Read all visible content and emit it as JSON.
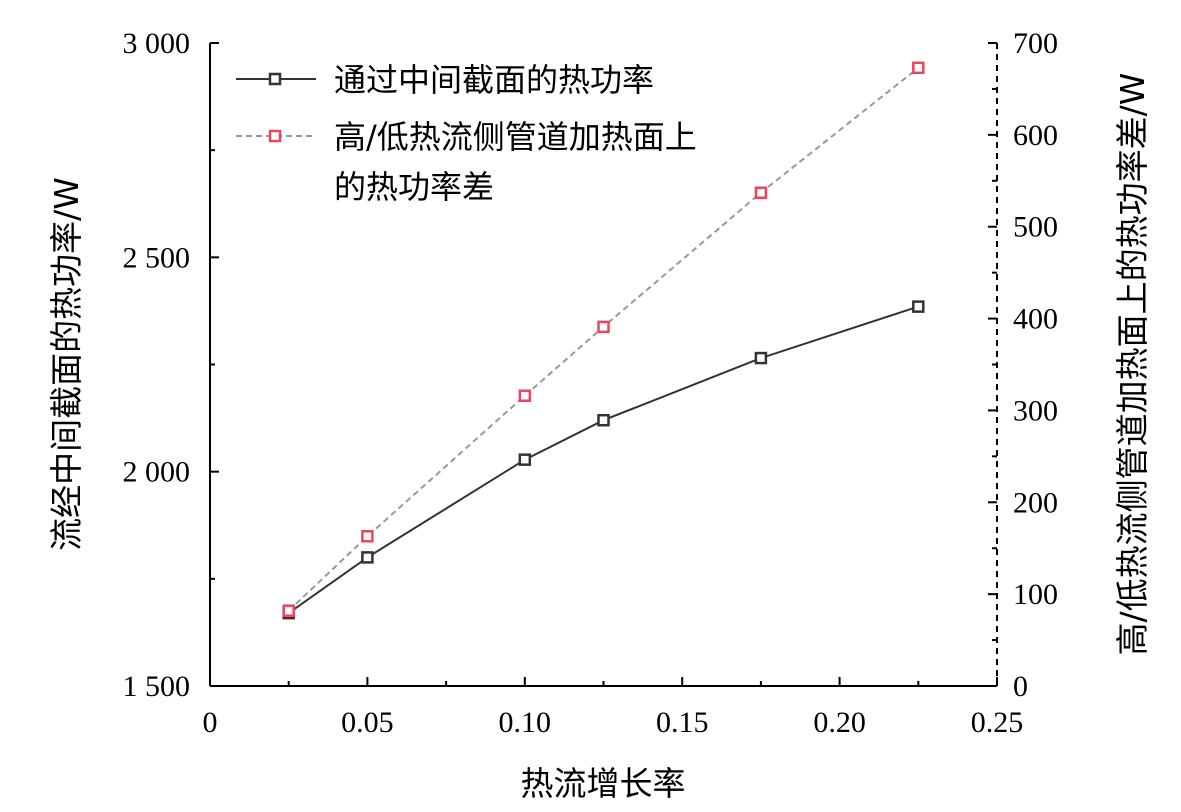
{
  "chart_data": {
    "type": "line",
    "x_axis": {
      "label": "热流增长率",
      "range": [
        0,
        0.25
      ],
      "ticks": [
        0,
        0.05,
        0.1,
        0.15,
        0.2,
        0.25
      ],
      "tick_labels": [
        "0",
        "0.05",
        "0.10",
        "0.15",
        "0.20",
        "0.25"
      ]
    },
    "y_axis_left": {
      "label": "流经中间截面的热功率/W",
      "range": [
        1500,
        3000
      ],
      "ticks": [
        1500,
        2000,
        2500,
        3000
      ],
      "tick_labels": [
        "1 500",
        "2 000",
        "2 500",
        "3 000"
      ]
    },
    "y_axis_right": {
      "label": "高/低热流侧管道加热面上的热功率差/W",
      "range": [
        0,
        700
      ],
      "ticks": [
        0,
        100,
        200,
        300,
        400,
        500,
        600,
        700
      ],
      "tick_labels": [
        "0",
        "100",
        "200",
        "300",
        "400",
        "500",
        "600",
        "700"
      ]
    },
    "series": [
      {
        "name": "通过中间截面的热功率",
        "axis": "left",
        "color": "#333333",
        "line_style": "solid",
        "marker": "square",
        "x": [
          0.025,
          0.05,
          0.1,
          0.125,
          0.175,
          0.225
        ],
        "y": [
          1670,
          1800,
          2028,
          2120,
          2265,
          2385
        ]
      },
      {
        "name": "高/低热流侧管道加热面上的热功率差",
        "legend_lines": [
          "高/低热流侧管道加热面上",
          "的热功率差"
        ],
        "axis": "right",
        "color": "#e8475f",
        "line_color": "#999999",
        "line_style": "dashed",
        "marker": "square",
        "x": [
          0.025,
          0.05,
          0.1,
          0.125,
          0.175,
          0.225
        ],
        "y": [
          82,
          163,
          316,
          391,
          537,
          673
        ]
      }
    ],
    "legend": {
      "position": "top-left"
    },
    "grid": false
  }
}
